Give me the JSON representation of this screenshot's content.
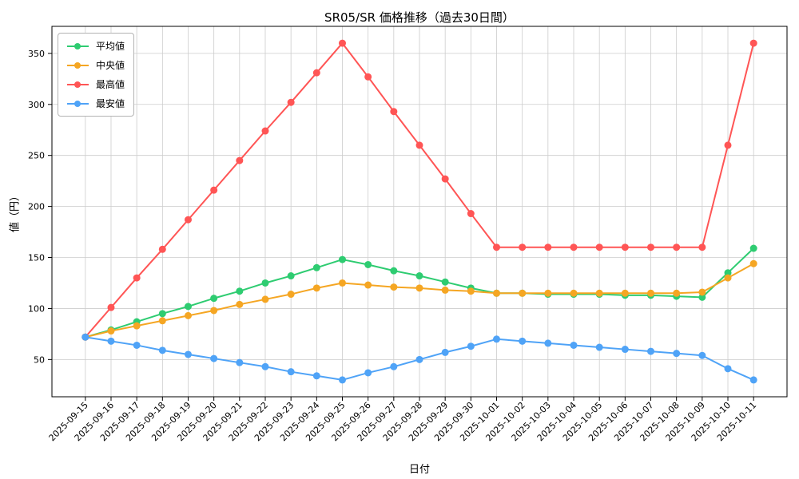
{
  "chart_data": {
    "type": "line",
    "title": "SR05/SR 価格推移（過去30日間）",
    "xlabel": "日付",
    "ylabel": "値（円）",
    "x": [
      "2025-09-15",
      "2025-09-16",
      "2025-09-17",
      "2025-09-18",
      "2025-09-19",
      "2025-09-20",
      "2025-09-21",
      "2025-09-22",
      "2025-09-23",
      "2025-09-24",
      "2025-09-25",
      "2025-09-26",
      "2025-09-27",
      "2025-09-28",
      "2025-09-29",
      "2025-09-30",
      "2025-10-01",
      "2025-10-02",
      "2025-10-03",
      "2025-10-04",
      "2025-10-05",
      "2025-10-06",
      "2025-10-07",
      "2025-10-08",
      "2025-10-09",
      "2025-10-10",
      "2025-10-11"
    ],
    "series": [
      {
        "key": "average",
        "name": "平均値",
        "color": "#2ecc71",
        "values": [
          72,
          79,
          87,
          95,
          102,
          110,
          117,
          125,
          132,
          140,
          148,
          143,
          137,
          132,
          126,
          120,
          115,
          115,
          114,
          114,
          114,
          113,
          113,
          112,
          111,
          135,
          159
        ]
      },
      {
        "key": "median",
        "name": "中央値",
        "color": "#f5a623",
        "values": [
          72,
          78,
          83,
          88,
          93,
          98,
          104,
          109,
          114,
          120,
          125,
          123,
          121,
          120,
          118,
          117,
          115,
          115,
          115,
          115,
          115,
          115,
          115,
          115,
          116,
          130,
          144
        ]
      },
      {
        "key": "max",
        "name": "最高値",
        "color": "#ff5555",
        "values": [
          72,
          101,
          130,
          158,
          187,
          216,
          245,
          274,
          302,
          331,
          360,
          327,
          293,
          260,
          227,
          193,
          160,
          160,
          160,
          160,
          160,
          160,
          160,
          160,
          160,
          260,
          360
        ]
      },
      {
        "key": "min",
        "name": "最安値",
        "color": "#4fa3f7",
        "values": [
          72,
          68,
          64,
          59,
          55,
          51,
          47,
          43,
          38,
          34,
          30,
          37,
          43,
          50,
          57,
          63,
          70,
          68,
          66,
          64,
          62,
          60,
          58,
          56,
          54,
          41,
          30
        ]
      }
    ],
    "ylim": [
      13.5,
      376.5
    ],
    "yticks": [
      50,
      100,
      150,
      200,
      250,
      300,
      350
    ],
    "x_margin": 1.3,
    "grid": true,
    "grid_color": "#cccccc",
    "legend_position": "upper left",
    "axis_color": "#000000"
  }
}
